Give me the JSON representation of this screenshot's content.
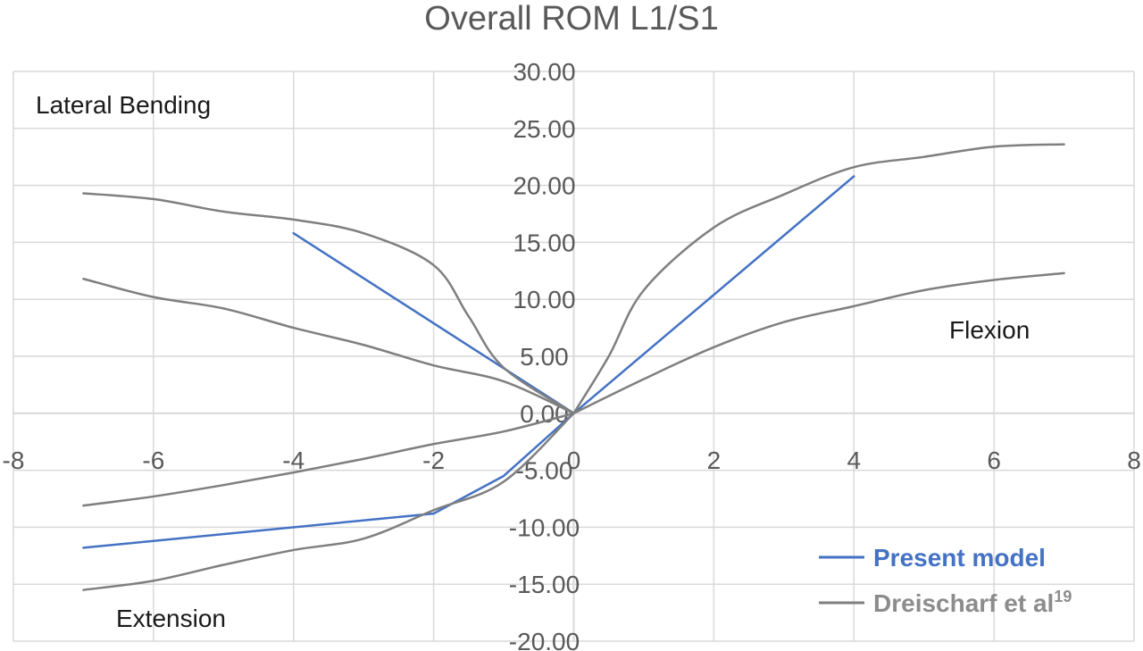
{
  "chart_data": {
    "type": "line",
    "title": "Overall ROM L1/S1",
    "xlim": [
      -8,
      8
    ],
    "ylim": [
      -20,
      30
    ],
    "x_ticks": [
      -8,
      -6,
      -4,
      -2,
      0,
      2,
      4,
      6,
      8
    ],
    "x_tick_labels": [
      "-8",
      "-6",
      "-4",
      "-2",
      "0",
      "2",
      "4",
      "6",
      "8"
    ],
    "y_ticks": [
      -20,
      -15,
      -10,
      -5,
      0,
      5,
      10,
      15,
      20,
      25,
      30
    ],
    "y_tick_labels": [
      "-20.00",
      "-15.00",
      "-10.00",
      "-5.00",
      "0.00",
      "5.00",
      "10.00",
      "15.00",
      "20.00",
      "25.00",
      "30.00"
    ],
    "grid": true,
    "legend_position": "bottom-right",
    "annotations": {
      "lateral_bending": "Lateral Bending",
      "flexion": "Flexion",
      "extension": "Extension"
    },
    "legend": {
      "model": "Present model",
      "ref": "Dreischarf et al",
      "ref_sup": "19"
    },
    "colors": {
      "model": "#4472c4",
      "ref": "#7f7f7f"
    },
    "series": [
      {
        "name": "Present model",
        "style": "model",
        "points": [
          [
            -4,
            15.8
          ],
          [
            0,
            0
          ],
          [
            4,
            20.8
          ]
        ]
      },
      {
        "name": "Present model",
        "style": "model",
        "points": [
          [
            -7,
            -11.8
          ],
          [
            -2,
            -8.8
          ],
          [
            -1,
            -5.5
          ],
          [
            0,
            0
          ]
        ]
      },
      {
        "name": "Dreischarf et al19",
        "style": "ref",
        "points": [
          [
            -7,
            19.3
          ],
          [
            -6,
            18.8
          ],
          [
            -5,
            17.7
          ],
          [
            -4,
            17.0
          ],
          [
            -3,
            15.8
          ],
          [
            -2,
            13.0
          ],
          [
            -1.5,
            8.5
          ],
          [
            -1,
            4.0
          ],
          [
            0,
            0
          ]
        ]
      },
      {
        "name": "Dreischarf et al19",
        "style": "ref",
        "points": [
          [
            -7,
            11.8
          ],
          [
            -6,
            10.2
          ],
          [
            -5,
            9.2
          ],
          [
            -4,
            7.5
          ],
          [
            -3,
            6.0
          ],
          [
            -2,
            4.2
          ],
          [
            -1,
            2.8
          ],
          [
            0,
            0
          ]
        ]
      },
      {
        "name": "Dreischarf et al19",
        "style": "ref",
        "points": [
          [
            0,
            0
          ],
          [
            0.5,
            5.0
          ],
          [
            1,
            10.8
          ],
          [
            2,
            16.3
          ],
          [
            3,
            19.2
          ],
          [
            4,
            21.6
          ],
          [
            5,
            22.5
          ],
          [
            6,
            23.4
          ],
          [
            7,
            23.6
          ]
        ]
      },
      {
        "name": "Dreischarf et al19",
        "style": "ref",
        "points": [
          [
            0,
            0
          ],
          [
            1,
            3.0
          ],
          [
            2,
            5.8
          ],
          [
            3,
            8.0
          ],
          [
            4,
            9.4
          ],
          [
            5,
            10.8
          ],
          [
            6,
            11.7
          ],
          [
            7,
            12.3
          ]
        ]
      },
      {
        "name": "Dreischarf et al19",
        "style": "ref",
        "points": [
          [
            -7,
            -8.1
          ],
          [
            -6,
            -7.3
          ],
          [
            -5,
            -6.3
          ],
          [
            -4,
            -5.2
          ],
          [
            -3,
            -4.0
          ],
          [
            -2,
            -2.7
          ],
          [
            -1,
            -1.6
          ],
          [
            0,
            0
          ]
        ]
      },
      {
        "name": "Dreischarf et al19",
        "style": "ref",
        "points": [
          [
            -7,
            -15.5
          ],
          [
            -6,
            -14.7
          ],
          [
            -5,
            -13.3
          ],
          [
            -4,
            -12.0
          ],
          [
            -3,
            -11.0
          ],
          [
            -2,
            -8.5
          ],
          [
            -1,
            -6.0
          ],
          [
            0,
            0
          ]
        ]
      }
    ]
  }
}
